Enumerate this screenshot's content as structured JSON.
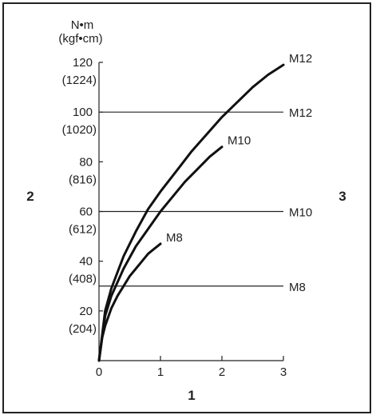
{
  "chart_data": {
    "type": "line",
    "unit_label": {
      "primary": "N•m",
      "secondary": "(kgf•cm)"
    },
    "x_axis": {
      "ticks": [
        0,
        1,
        2,
        3
      ],
      "range": [
        0,
        3
      ],
      "label": "1"
    },
    "y_axis": {
      "range": [
        0,
        120
      ],
      "ticks": [
        {
          "value": 20,
          "label": "20",
          "sublabel": "(204)"
        },
        {
          "value": 40,
          "label": "40",
          "sublabel": "(408)"
        },
        {
          "value": 60,
          "label": "60",
          "sublabel": "(612)"
        },
        {
          "value": 80,
          "label": "80",
          "sublabel": "(816)"
        },
        {
          "value": 100,
          "label": "100",
          "sublabel": "(1020)"
        },
        {
          "value": 120,
          "label": "120",
          "sublabel": "(1224)"
        }
      ],
      "label": "2"
    },
    "right_label": "3",
    "curves": [
      {
        "name": "M8",
        "x": [
          0,
          0.05,
          0.1,
          0.2,
          0.3,
          0.4,
          0.5,
          0.6,
          0.7,
          0.8,
          0.9,
          1.0
        ],
        "y": [
          0,
          9,
          14,
          21,
          26,
          30,
          34,
          37,
          40,
          43,
          45,
          47
        ]
      },
      {
        "name": "M10",
        "x": [
          0,
          0.1,
          0.2,
          0.4,
          0.6,
          0.8,
          1.0,
          1.2,
          1.4,
          1.6,
          1.8,
          2.0
        ],
        "y": [
          0,
          18,
          26,
          37,
          46,
          53,
          60,
          66,
          72,
          77,
          82,
          86
        ]
      },
      {
        "name": "M12",
        "x": [
          0,
          0.1,
          0.2,
          0.4,
          0.6,
          0.8,
          1.0,
          1.25,
          1.5,
          1.75,
          2.0,
          2.25,
          2.5,
          2.75,
          3.0
        ],
        "y": [
          0,
          20,
          29,
          42,
          52,
          61,
          68,
          76,
          84,
          91,
          98,
          104,
          110,
          115,
          119
        ]
      }
    ],
    "reference_lines": [
      {
        "name": "M8",
        "y": 30
      },
      {
        "name": "M10",
        "y": 60
      },
      {
        "name": "M12",
        "y": 100
      }
    ],
    "grid": false,
    "legend": "none"
  }
}
